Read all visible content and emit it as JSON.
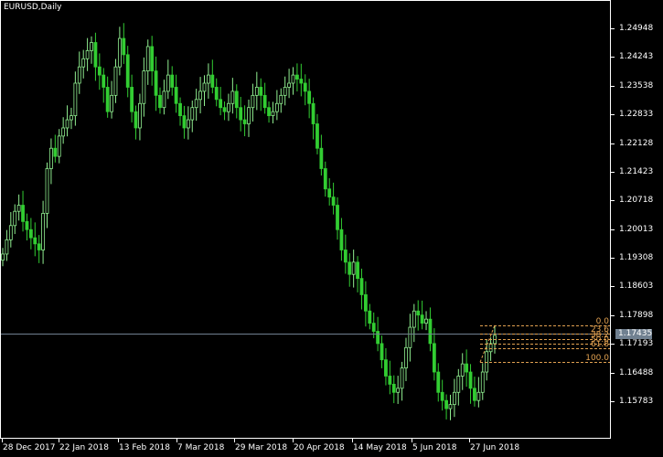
{
  "window": {
    "symbol_title": "EURUSD,Daily"
  },
  "colors": {
    "background": "#000000",
    "bull_candle": "#90ee90",
    "bear_candle": "#32cd32",
    "axis": "#ffffff",
    "fibo": "#e0a050",
    "bid_line": "#708090"
  },
  "price_axis": {
    "labels": [
      "1.24948",
      "1.24243",
      "1.23538",
      "1.22833",
      "1.22128",
      "1.21423",
      "1.20718",
      "1.20013",
      "1.19308",
      "1.18603",
      "1.17898",
      "1.17193",
      "1.16488",
      "1.15783"
    ],
    "bid_price": "1.17435"
  },
  "time_axis": {
    "labels": [
      "28 Dec 2017",
      "22 Jan 2018",
      "13 Feb 2018",
      "7 Mar 2018",
      "29 Mar 2018",
      "20 Apr 2018",
      "14 May 2018",
      "5 Jun 2018",
      "27 Jun 2018"
    ]
  },
  "fibonacci": {
    "levels": [
      {
        "label": "0.0",
        "price": 1.1765
      },
      {
        "label": "23.6",
        "price": 1.17435
      },
      {
        "label": "38.2",
        "price": 1.17303
      },
      {
        "label": "50.0",
        "price": 1.17195
      },
      {
        "label": "61.8",
        "price": 1.17088
      },
      {
        "label": "100.0",
        "price": 1.1674
      }
    ]
  },
  "chart_data": {
    "type": "candlestick",
    "symbol": "EURUSD",
    "timeframe": "Daily",
    "ylim": [
      1.153,
      1.2545
    ],
    "x_labels": [
      "28 Dec 2017",
      "22 Jan 2018",
      "13 Feb 2018",
      "7 Mar 2018",
      "29 Mar 2018",
      "20 Apr 2018",
      "14 May 2018",
      "5 Jun 2018",
      "27 Jun 2018"
    ],
    "close_series": [
      1.194,
      1.1975,
      1.201,
      1.2045,
      1.206,
      1.202,
      1.2,
      1.198,
      1.1965,
      1.195,
      1.204,
      1.215,
      1.22,
      1.218,
      1.223,
      1.225,
      1.227,
      1.228,
      1.236,
      1.24,
      1.242,
      1.244,
      1.246,
      1.24,
      1.238,
      1.235,
      1.229,
      1.233,
      1.24,
      1.247,
      1.243,
      1.235,
      1.229,
      1.225,
      1.231,
      1.239,
      1.245,
      1.239,
      1.233,
      1.23,
      1.234,
      1.238,
      1.235,
      1.231,
      1.228,
      1.225,
      1.227,
      1.23,
      1.232,
      1.234,
      1.236,
      1.238,
      1.235,
      1.232,
      1.23,
      1.229,
      1.231,
      1.234,
      1.23,
      1.227,
      1.226,
      1.23,
      1.233,
      1.235,
      1.233,
      1.23,
      1.228,
      1.229,
      1.231,
      1.233,
      1.235,
      1.236,
      1.238,
      1.237,
      1.236,
      1.234,
      1.231,
      1.226,
      1.22,
      1.215,
      1.21,
      1.208,
      1.206,
      1.2,
      1.195,
      1.192,
      1.189,
      1.192,
      1.188,
      1.184,
      1.18,
      1.177,
      1.175,
      1.172,
      1.168,
      1.164,
      1.162,
      1.16,
      1.161,
      1.166,
      1.171,
      1.176,
      1.18,
      1.179,
      1.177,
      1.178,
      1.172,
      1.165,
      1.16,
      1.158,
      1.156,
      1.157,
      1.16,
      1.164,
      1.167,
      1.165,
      1.161,
      1.158,
      1.16,
      1.165,
      1.17,
      1.172,
      1.174
    ]
  }
}
